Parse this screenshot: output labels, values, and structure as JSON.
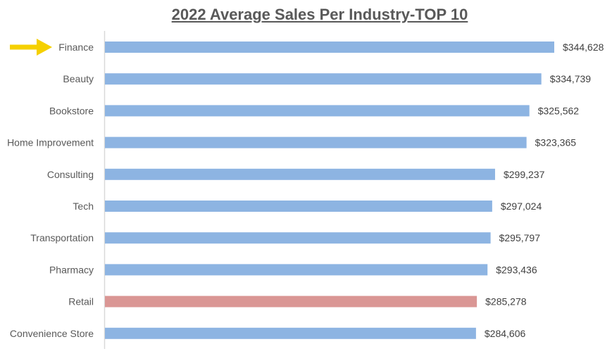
{
  "chart_data": {
    "type": "bar",
    "orientation": "horizontal",
    "title": "2022 Average Sales Per Industry-TOP 10",
    "categories": [
      "Finance",
      "Beauty",
      "Bookstore",
      "Home Improvement",
      "Consulting",
      "Tech",
      "Transportation",
      "Pharmacy",
      "Retail",
      "Convenience Store"
    ],
    "values": [
      344628,
      334739,
      325562,
      323365,
      299237,
      297024,
      295797,
      293436,
      285278,
      284606
    ],
    "value_labels": [
      "$344,628",
      "$334,739",
      "$325,562",
      "$323,365",
      "$299,237",
      "$297,024",
      "$295,797",
      "$293,436",
      "$285,278",
      "$284,606"
    ],
    "xlim": [
      0,
      350000
    ],
    "xlabel": "",
    "ylabel": "",
    "grid": false,
    "legend": "none",
    "colors": {
      "default_bar": "#8DB4E2",
      "highlight_bar": "#DA9694",
      "arrow": "#F5D000",
      "axis": "#D9D9D9"
    },
    "highlighted_category": "Retail",
    "pointer_category": "Finance"
  }
}
